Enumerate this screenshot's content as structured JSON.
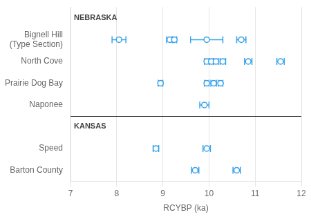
{
  "chart_data": {
    "type": "errorbar",
    "orientation": "horizontal",
    "xlabel": "RCYBP (ka)",
    "xlim": [
      7,
      12
    ],
    "xticks": [
      7,
      8,
      9,
      10,
      11,
      12
    ],
    "grid": true,
    "categories": [
      "Bignell Hill\n(Type Section)",
      "North Cove",
      "Prairie Dog Bay",
      "Naponee",
      "Speed",
      "Barton County"
    ],
    "sections": [
      "NEBRASKA",
      "NEBRASKA",
      "NEBRASKA",
      "NEBRASKA",
      "KANSAS",
      "KANSAS"
    ],
    "values": [
      [
        8.05,
        9.15,
        9.25,
        9.95,
        10.7
      ],
      [
        9.95,
        10.05,
        10.15,
        10.3,
        10.85,
        11.55
      ],
      [
        8.95,
        9.95,
        10.1,
        10.25
      ],
      [
        9.9
      ],
      [
        8.85,
        9.95
      ],
      [
        9.7,
        10.6
      ]
    ],
    "errors": [
      [
        0.15,
        0.07,
        0.05,
        0.35,
        0.1
      ],
      [
        0.05,
        0.04,
        0.05,
        0.06,
        0.08,
        0.08
      ],
      [
        0.05,
        0.05,
        0.06,
        0.05
      ],
      [
        0.1
      ],
      [
        0.06,
        0.08
      ],
      [
        0.08,
        0.08
      ]
    ]
  }
}
